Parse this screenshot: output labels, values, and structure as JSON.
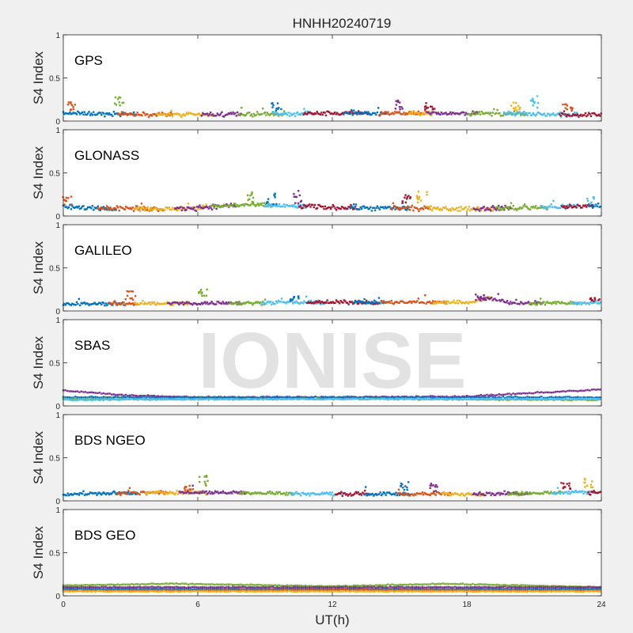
{
  "figure": {
    "title": "HNHH20240719",
    "xlabel": "UT(h)",
    "watermark": "IONISE"
  },
  "chart_data": [
    {
      "type": "scatter",
      "panel_label": "GPS",
      "ylabel": "S4 Index",
      "xlim": [
        0,
        24
      ],
      "ylim": [
        0,
        1
      ],
      "x_ticks": [
        0,
        6,
        12,
        18,
        24
      ],
      "y_ticks": [
        0,
        0.5,
        1
      ],
      "y_tick_labels": [
        "0",
        "0.5",
        "1"
      ],
      "baseline": 0.08,
      "noise": 0.035,
      "trends": [
        [
          0,
          0.09
        ],
        [
          6,
          0.07
        ],
        [
          12,
          0.09
        ],
        [
          18,
          0.09
        ],
        [
          24,
          0.07
        ]
      ],
      "peaks": [
        [
          0.4,
          0.22
        ],
        [
          2.5,
          0.28
        ],
        [
          9.5,
          0.21
        ],
        [
          15.0,
          0.24
        ],
        [
          16.3,
          0.24
        ],
        [
          20.2,
          0.22
        ],
        [
          21.0,
          0.29
        ],
        [
          22.5,
          0.2
        ]
      ],
      "colors": [
        "#0072bd",
        "#d95319",
        "#edb120",
        "#7e2f8e",
        "#77ac30",
        "#4dbeee",
        "#a2142f"
      ]
    },
    {
      "type": "scatter",
      "panel_label": "GLONASS",
      "ylabel": "S4 Index",
      "xlim": [
        0,
        24
      ],
      "ylim": [
        0,
        1
      ],
      "x_ticks": [
        0,
        6,
        12,
        18,
        24
      ],
      "y_ticks": [
        0,
        0.5,
        1
      ],
      "y_tick_labels": [
        "0",
        "0.5",
        "1"
      ],
      "baseline": 0.08,
      "noise": 0.04,
      "trends": [
        [
          0,
          0.1
        ],
        [
          5,
          0.08
        ],
        [
          8,
          0.13
        ],
        [
          12,
          0.1
        ],
        [
          18,
          0.08
        ],
        [
          24,
          0.12
        ]
      ],
      "peaks": [
        [
          0.2,
          0.25
        ],
        [
          8.3,
          0.3
        ],
        [
          9.3,
          0.26
        ],
        [
          10.5,
          0.3
        ],
        [
          15.3,
          0.28
        ],
        [
          16.0,
          0.3
        ],
        [
          23.5,
          0.22
        ]
      ],
      "colors": [
        "#0072bd",
        "#d95319",
        "#edb120",
        "#7e2f8e",
        "#77ac30",
        "#4dbeee",
        "#a2142f"
      ]
    },
    {
      "type": "scatter",
      "panel_label": "GALILEO",
      "ylabel": "S4 Index",
      "xlim": [
        0,
        24
      ],
      "ylim": [
        0,
        1
      ],
      "x_ticks": [
        0,
        6,
        12,
        18,
        24
      ],
      "y_ticks": [
        0,
        0.5,
        1
      ],
      "y_tick_labels": [
        "0",
        "0.5",
        "1"
      ],
      "baseline": 0.08,
      "noise": 0.03,
      "trends": [
        [
          0,
          0.08
        ],
        [
          6,
          0.09
        ],
        [
          12,
          0.1
        ],
        [
          18,
          0.1
        ],
        [
          19,
          0.15
        ],
        [
          20,
          0.09
        ],
        [
          24,
          0.09
        ]
      ],
      "peaks": [
        [
          3.0,
          0.23
        ],
        [
          6.2,
          0.26
        ],
        [
          10.3,
          0.18
        ],
        [
          18.6,
          0.2
        ],
        [
          23.7,
          0.17
        ]
      ],
      "colors": [
        "#0072bd",
        "#d95319",
        "#edb120",
        "#7e2f8e",
        "#77ac30",
        "#4dbeee",
        "#a2142f"
      ]
    },
    {
      "type": "scatter",
      "panel_label": "SBAS",
      "ylabel": "S4 Index",
      "xlim": [
        0,
        24
      ],
      "ylim": [
        0,
        1
      ],
      "x_ticks": [
        0,
        6,
        12,
        18,
        24
      ],
      "y_ticks": [
        0,
        0.5,
        1
      ],
      "y_tick_labels": [
        "0",
        "0.5",
        "1"
      ],
      "series": [
        {
          "color": "#7e2f8e",
          "trend": [
            [
              0,
              0.18
            ],
            [
              3,
              0.12
            ],
            [
              6,
              0.1
            ],
            [
              12,
              0.1
            ],
            [
              18,
              0.11
            ],
            [
              24,
              0.19
            ]
          ],
          "noise": 0.012
        },
        {
          "color": "#0072bd",
          "trend": [
            [
              0,
              0.1
            ],
            [
              12,
              0.1
            ],
            [
              24,
              0.1
            ]
          ],
          "noise": 0.012
        },
        {
          "color": "#77ac30",
          "trend": [
            [
              0,
              0.08
            ],
            [
              12,
              0.08
            ],
            [
              24,
              0.07
            ]
          ],
          "noise": 0.01
        },
        {
          "color": "#4dbeee",
          "trend": [
            [
              0,
              0.07
            ],
            [
              12,
              0.08
            ],
            [
              24,
              0.08
            ]
          ],
          "noise": 0.01
        }
      ]
    },
    {
      "type": "scatter",
      "panel_label": "BDS NGEO",
      "ylabel": "S4 Index",
      "xlim": [
        0,
        24
      ],
      "ylim": [
        0,
        1
      ],
      "x_ticks": [
        0,
        6,
        12,
        18,
        24
      ],
      "y_ticks": [
        0,
        0.5,
        1
      ],
      "y_tick_labels": [
        "0",
        "0.5",
        "1"
      ],
      "baseline": 0.07,
      "noise": 0.03,
      "trends": [
        [
          0,
          0.08
        ],
        [
          6,
          0.1
        ],
        [
          12,
          0.08
        ],
        [
          18,
          0.08
        ],
        [
          24,
          0.1
        ]
      ],
      "peaks": [
        [
          5.6,
          0.22
        ],
        [
          6.3,
          0.3
        ],
        [
          15.2,
          0.24
        ],
        [
          16.5,
          0.2
        ],
        [
          22.4,
          0.22
        ],
        [
          23.4,
          0.27
        ]
      ],
      "colors": [
        "#0072bd",
        "#d95319",
        "#edb120",
        "#7e2f8e",
        "#77ac30",
        "#4dbeee",
        "#a2142f"
      ]
    },
    {
      "type": "scatter",
      "panel_label": "BDS GEO",
      "ylabel": "S4 Index",
      "xlim": [
        0,
        24
      ],
      "ylim": [
        0,
        1
      ],
      "x_ticks": [
        0,
        6,
        12,
        18,
        24
      ],
      "y_ticks": [
        0,
        0.5,
        1
      ],
      "y_tick_labels": [
        "0",
        "0.5",
        "1"
      ],
      "series": [
        {
          "color": "#77ac30",
          "trend": [
            [
              0,
              0.12
            ],
            [
              5,
              0.14
            ],
            [
              12,
              0.11
            ],
            [
              17,
              0.14
            ],
            [
              24,
              0.1
            ]
          ],
          "noise": 0.008
        },
        {
          "color": "#7e2f8e",
          "trend": [
            [
              0,
              0.1
            ],
            [
              12,
              0.1
            ],
            [
              24,
              0.1
            ]
          ],
          "noise": 0.008
        },
        {
          "color": "#0072bd",
          "trend": [
            [
              0,
              0.08
            ],
            [
              12,
              0.08
            ],
            [
              24,
              0.08
            ]
          ],
          "noise": 0.006
        },
        {
          "color": "#d95319",
          "trend": [
            [
              0,
              0.06
            ],
            [
              12,
              0.07
            ],
            [
              24,
              0.06
            ]
          ],
          "noise": 0.006
        },
        {
          "color": "#edb120",
          "trend": [
            [
              0,
              0.05
            ],
            [
              12,
              0.05
            ],
            [
              24,
              0.05
            ]
          ],
          "noise": 0.006
        }
      ]
    }
  ]
}
